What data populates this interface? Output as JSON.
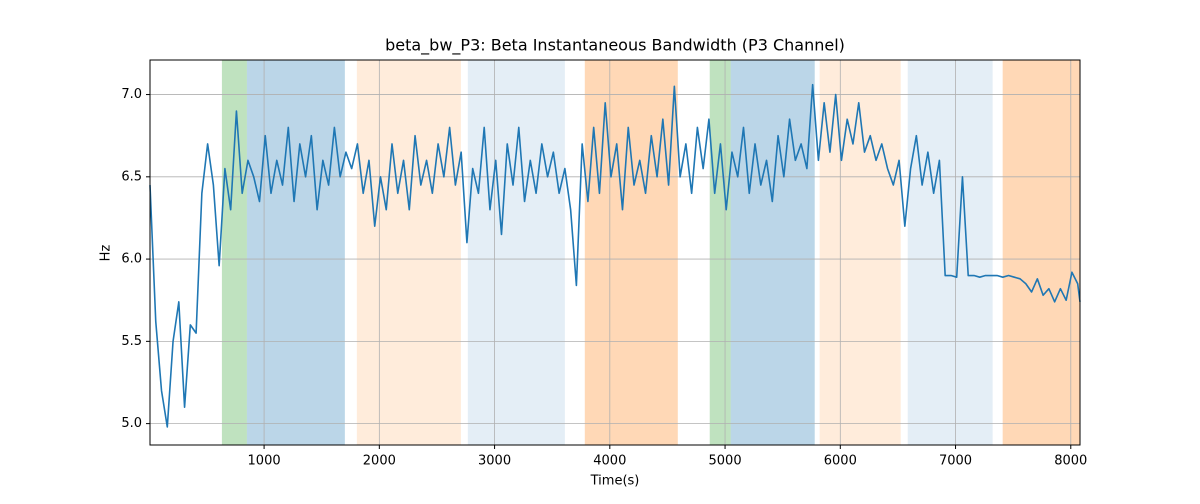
{
  "chart_data": {
    "type": "line",
    "title": "beta_bw_P3: Beta Instantaneous Bandwidth (P3 Channel)",
    "xlabel": "Time(s)",
    "ylabel": "Hz",
    "xlim": [
      10,
      8080
    ],
    "ylim": [
      4.87,
      7.21
    ],
    "xticks": [
      1000,
      2000,
      3000,
      4000,
      5000,
      6000,
      7000,
      8000
    ],
    "yticks": [
      {
        "value": 5,
        "label": "5.0"
      },
      5.5,
      {
        "value": 6,
        "label": "6.0"
      },
      6.5,
      {
        "value": 7,
        "label": "7.0"
      }
    ],
    "grid": true,
    "spans": [
      {
        "start": 634,
        "end": 851,
        "color": "#2ca02c",
        "opacity": 0.3
      },
      {
        "start": 851,
        "end": 1701,
        "color": "#1f77b4",
        "opacity": 0.3
      },
      {
        "start": 1805,
        "end": 2708,
        "color": "#ff7f0e",
        "opacity": 0.15
      },
      {
        "start": 2768,
        "end": 3610,
        "color": "#1f77b4",
        "opacity": 0.12
      },
      {
        "start": 3783,
        "end": 4590,
        "color": "#ff7f0e",
        "opacity": 0.3
      },
      {
        "start": 4867,
        "end": 5049,
        "color": "#2ca02c",
        "opacity": 0.3
      },
      {
        "start": 5049,
        "end": 5778,
        "color": "#1f77b4",
        "opacity": 0.3
      },
      {
        "start": 5821,
        "end": 6524,
        "color": "#ff7f0e",
        "opacity": 0.15
      },
      {
        "start": 6585,
        "end": 7322,
        "color": "#1f77b4",
        "opacity": 0.12
      },
      {
        "start": 7409,
        "end": 8080,
        "color": "#ff7f0e",
        "opacity": 0.3
      }
    ],
    "x": [
      10,
      60,
      110,
      160,
      210,
      260,
      310,
      360,
      410,
      460,
      510,
      560,
      610,
      660,
      710,
      760,
      810,
      860,
      910,
      960,
      1010,
      1060,
      1110,
      1160,
      1210,
      1260,
      1310,
      1360,
      1410,
      1460,
      1510,
      1560,
      1610,
      1660,
      1710,
      1760,
      1810,
      1860,
      1910,
      1960,
      2010,
      2060,
      2110,
      2160,
      2210,
      2260,
      2310,
      2360,
      2410,
      2460,
      2510,
      2560,
      2610,
      2660,
      2710,
      2760,
      2810,
      2860,
      2910,
      2960,
      3010,
      3060,
      3110,
      3160,
      3210,
      3260,
      3310,
      3360,
      3410,
      3460,
      3510,
      3560,
      3610,
      3660,
      3710,
      3760,
      3810,
      3860,
      3910,
      3960,
      4010,
      4060,
      4110,
      4160,
      4210,
      4260,
      4310,
      4360,
      4410,
      4460,
      4510,
      4560,
      4610,
      4660,
      4710,
      4760,
      4810,
      4860,
      4910,
      4960,
      5010,
      5060,
      5110,
      5160,
      5210,
      5260,
      5310,
      5360,
      5410,
      5460,
      5510,
      5560,
      5610,
      5660,
      5710,
      5760,
      5810,
      5860,
      5910,
      5960,
      6010,
      6060,
      6110,
      6160,
      6210,
      6260,
      6310,
      6360,
      6410,
      6460,
      6510,
      6560,
      6610,
      6660,
      6710,
      6760,
      6810,
      6860,
      6910,
      6960,
      7010,
      7060,
      7110,
      7160,
      7210,
      7260,
      7310,
      7360,
      7410,
      7460,
      7510,
      7560,
      7610,
      7660,
      7710,
      7760,
      7810,
      7860,
      7910,
      7960,
      8010,
      8060,
      8080
    ],
    "series": [
      {
        "color": "#1f77b4",
        "values": [
          6.45,
          5.62,
          5.2,
          4.98,
          5.5,
          5.74,
          5.1,
          5.6,
          5.55,
          6.4,
          6.7,
          6.45,
          5.96,
          6.55,
          6.3,
          6.9,
          6.4,
          6.6,
          6.5,
          6.35,
          6.75,
          6.4,
          6.6,
          6.45,
          6.8,
          6.35,
          6.7,
          6.5,
          6.75,
          6.3,
          6.6,
          6.45,
          6.8,
          6.5,
          6.65,
          6.55,
          6.7,
          6.4,
          6.6,
          6.2,
          6.5,
          6.3,
          6.7,
          6.4,
          6.6,
          6.3,
          6.75,
          6.45,
          6.6,
          6.4,
          6.7,
          6.5,
          6.8,
          6.45,
          6.65,
          6.1,
          6.55,
          6.4,
          6.8,
          6.3,
          6.6,
          6.15,
          6.7,
          6.45,
          6.8,
          6.35,
          6.6,
          6.4,
          6.7,
          6.5,
          6.65,
          6.4,
          6.55,
          6.3,
          5.84,
          6.7,
          6.35,
          6.8,
          6.4,
          6.95,
          6.5,
          6.7,
          6.3,
          6.8,
          6.45,
          6.6,
          6.4,
          6.75,
          6.5,
          6.85,
          6.45,
          7.05,
          6.5,
          6.7,
          6.4,
          6.8,
          6.55,
          6.85,
          6.4,
          6.7,
          6.3,
          6.65,
          6.5,
          6.8,
          6.4,
          6.7,
          6.45,
          6.6,
          6.35,
          6.75,
          6.5,
          6.85,
          6.6,
          6.7,
          6.55,
          7.06,
          6.6,
          6.95,
          6.65,
          7.0,
          6.6,
          6.85,
          6.7,
          6.95,
          6.65,
          6.75,
          6.6,
          6.7,
          6.55,
          6.45,
          6.6,
          6.2,
          6.55,
          6.75,
          6.45,
          6.65,
          6.4,
          6.6,
          5.9,
          5.9,
          5.89,
          6.5,
          5.9,
          5.9,
          5.89,
          5.9,
          5.9,
          5.9,
          5.89,
          5.9,
          5.89,
          5.88,
          5.85,
          5.8,
          5.88,
          5.78,
          5.82,
          5.74,
          5.82,
          5.75,
          5.92,
          5.85,
          5.74
        ]
      }
    ]
  }
}
